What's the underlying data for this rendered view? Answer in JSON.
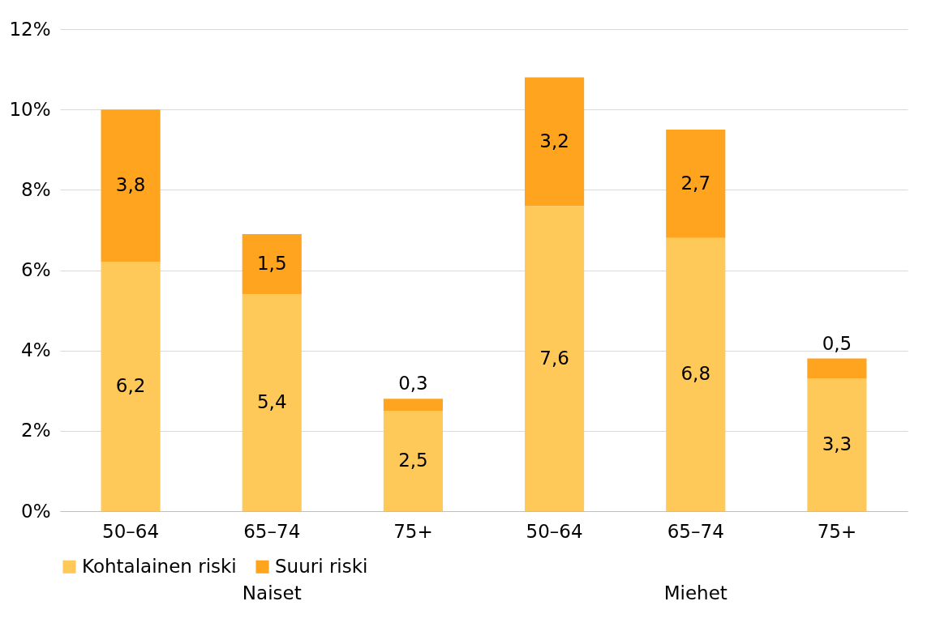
{
  "chart_data": {
    "type": "bar",
    "stacked": true,
    "categories": [
      "50–64",
      "65–74",
      "75+",
      "50–64",
      "65–74",
      "75+"
    ],
    "annotations": [
      "Naiset",
      "Miehet"
    ],
    "series": [
      {
        "name": "Kohtalainen riski",
        "color": "#ffc95a",
        "values": [
          6.2,
          5.4,
          2.5,
          7.6,
          6.8,
          3.3
        ],
        "value_labels": [
          "6,2",
          "5,4",
          "2,5",
          "7,6",
          "6,8",
          "3,3"
        ]
      },
      {
        "name": "Suuri riski",
        "color": "#ffa41f",
        "values": [
          3.8,
          1.5,
          0.3,
          3.2,
          2.7,
          0.5
        ],
        "value_labels": [
          "3,8",
          "1,5",
          "0,3",
          "3,2",
          "2,7",
          "0,5"
        ]
      }
    ],
    "ylim": [
      0,
      12
    ],
    "yticks": [
      {
        "value": 0,
        "label": "0%"
      },
      {
        "value": 2,
        "label": "2%"
      },
      {
        "value": 4,
        "label": "4%"
      },
      {
        "value": 6,
        "label": "6%"
      },
      {
        "value": 8,
        "label": "8%"
      },
      {
        "value": 10,
        "label": "10%"
      },
      {
        "value": 12,
        "label": "12%"
      }
    ],
    "grid": "y",
    "legend": "bottom"
  }
}
